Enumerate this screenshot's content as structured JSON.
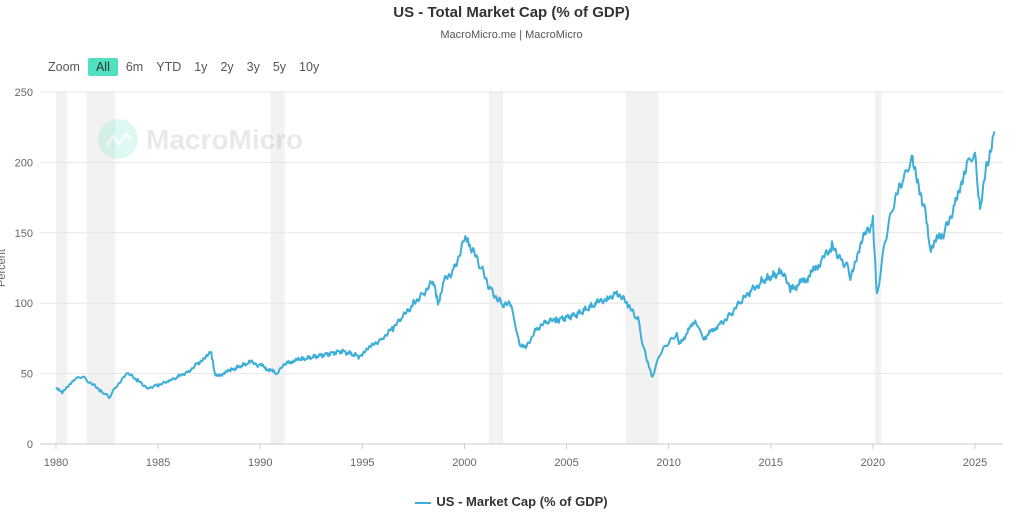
{
  "chart_data": {
    "type": "line",
    "title": "US - Total Market Cap (% of GDP)",
    "subtitle": "MacroMicro.me | MacroMicro",
    "watermark": "MacroMicro",
    "ylabel": "Percent",
    "xlabel": "",
    "ylim": [
      0,
      250
    ],
    "xlim": [
      1979.8,
      2026.5
    ],
    "yticks": [
      0,
      50,
      100,
      150,
      200,
      250
    ],
    "xticks": [
      1980,
      1985,
      1990,
      1995,
      2000,
      2005,
      2010,
      2015,
      2020,
      2025
    ],
    "grid": true,
    "legend_position": "bottom",
    "line_color": "#3eaed8",
    "recessions": [
      [
        1980.0,
        1980.55
      ],
      [
        1981.5,
        1982.9
      ],
      [
        1990.5,
        1991.2
      ],
      [
        2001.2,
        2001.9
      ],
      [
        2007.9,
        2009.5
      ],
      [
        2020.1,
        2020.4
      ]
    ],
    "series": [
      {
        "name": "US - Market Cap (% of GDP)",
        "x": [
          1980,
          1980.3,
          1980.9,
          1981.3,
          1981.7,
          1982.2,
          1982.6,
          1983.0,
          1983.5,
          1984.0,
          1984.5,
          1985.0,
          1985.5,
          1986.0,
          1986.5,
          1987.0,
          1987.6,
          1987.8,
          1988.5,
          1989.5,
          1990.0,
          1990.8,
          1991.3,
          1992.0,
          1993.0,
          1994.0,
          1994.9,
          1995.5,
          1996.0,
          1996.5,
          1997.0,
          1997.5,
          1998.0,
          1998.5,
          1998.7,
          1999.0,
          1999.5,
          2000.0,
          2000.3,
          2000.8,
          2001.3,
          2001.8,
          2002.3,
          2002.7,
          2003.0,
          2003.5,
          2004.0,
          2004.5,
          2005.5,
          2006.5,
          2007.0,
          2007.5,
          2008.0,
          2008.5,
          2008.9,
          2009.2,
          2009.6,
          2010.0,
          2010.4,
          2010.5,
          2011.3,
          2011.7,
          2012.5,
          2013.0,
          2013.5,
          2014.0,
          2014.5,
          2015.5,
          2016.0,
          2016.8,
          2017.5,
          2018.0,
          2018.5,
          2018.9,
          2019.5,
          2020.0,
          2020.2,
          2020.6,
          2021.0,
          2021.5,
          2021.9,
          2022.5,
          2022.8,
          2023.5,
          2024.0,
          2024.6,
          2025.0,
          2025.25,
          2025.6,
          2025.95
        ],
        "y": [
          40,
          36,
          46,
          48,
          43,
          38,
          33,
          42,
          50,
          45,
          40,
          42,
          44,
          48,
          52,
          58,
          65,
          48,
          52,
          58,
          56,
          50,
          58,
          60,
          63,
          66,
          62,
          70,
          76,
          82,
          90,
          100,
          108,
          115,
          100,
          115,
          125,
          145,
          140,
          125,
          110,
          100,
          98,
          70,
          68,
          82,
          86,
          88,
          92,
          100,
          104,
          108,
          98,
          88,
          60,
          48,
          65,
          72,
          78,
          70,
          88,
          75,
          85,
          92,
          100,
          108,
          115,
          122,
          110,
          118,
          130,
          140,
          132,
          120,
          145,
          158,
          105,
          145,
          170,
          188,
          202,
          170,
          140,
          150,
          170,
          200,
          205,
          165,
          200,
          222
        ]
      }
    ]
  },
  "zoom": {
    "label": "Zoom",
    "options": [
      "All",
      "6m",
      "YTD",
      "1y",
      "2y",
      "3y",
      "5y",
      "10y"
    ],
    "selected": "All"
  }
}
